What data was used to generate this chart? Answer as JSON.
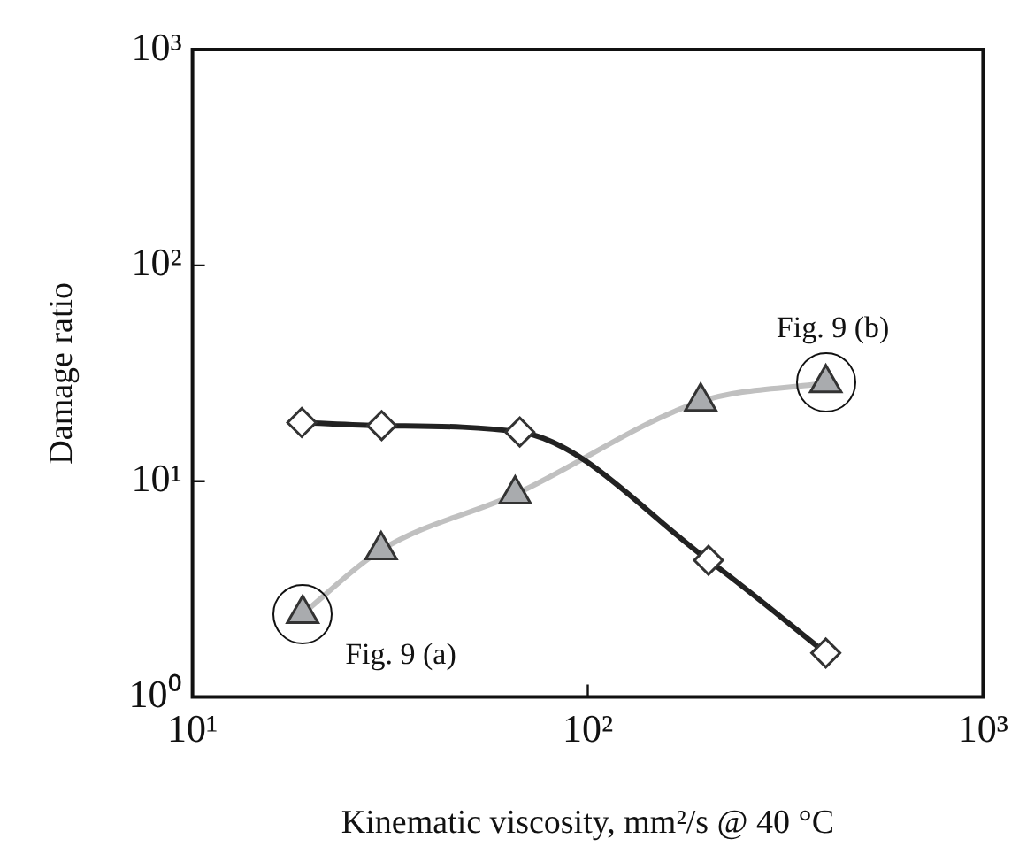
{
  "chart_data": {
    "type": "line",
    "xlabel": "Kinematic viscosity, mm²/s @ 40 °C",
    "ylabel": "Damage ratio",
    "log": "xy",
    "grid": false,
    "legend": false,
    "xlim": [
      10,
      1000
    ],
    "xticks": [
      {
        "value": 10,
        "label": "10¹"
      },
      {
        "value": 100,
        "label": "10²"
      },
      {
        "value": 1000,
        "label": "10³"
      }
    ],
    "ylim": [
      1,
      1000
    ],
    "yticks": [
      {
        "value": 1,
        "label": "10⁰"
      },
      {
        "value": 10,
        "label": "10¹"
      },
      {
        "value": 100,
        "label": "10²"
      },
      {
        "value": 1000,
        "label": "10³"
      }
    ],
    "series": [
      {
        "color": "#222222",
        "marker": "diamond",
        "x": [
          18.9,
          30.1,
          67.3,
          202,
          400
        ],
        "values": [
          18.7,
          18.1,
          16.9,
          4.3,
          1.6
        ]
      },
      {
        "color": "#c0c0c0",
        "marker": "triangle",
        "x": [
          19,
          30,
          65.5,
          193,
          400
        ],
        "values": [
          2.43,
          4.8,
          8.7,
          23.4,
          28.5
        ]
      }
    ],
    "annotations": [
      {
        "text": "Fig. 9 (a)",
        "x": 19,
        "y": 2.43
      },
      {
        "text": "Fig. 9 (b)",
        "x": 400,
        "y": 28.5
      }
    ]
  }
}
